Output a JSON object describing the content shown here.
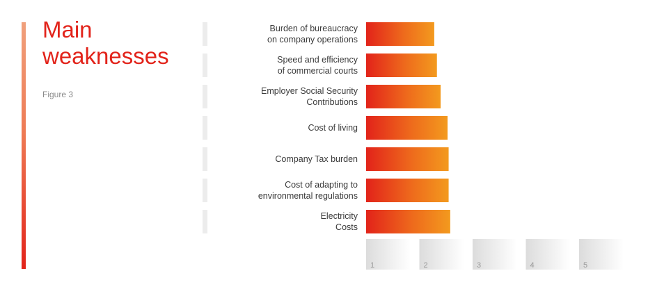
{
  "header": {
    "title_line1": "Main",
    "title_line2": "weaknesses",
    "figure_label": "Figure 3"
  },
  "colors": {
    "accent": "#e2231a",
    "bar_start": "#e2231a",
    "bar_end": "#f39a1e"
  },
  "chart_data": {
    "type": "bar",
    "orientation": "horizontal",
    "categories": [
      [
        "Burden of bureaucracy",
        "on company operations"
      ],
      [
        "Speed and efficiency",
        "of commercial courts"
      ],
      [
        "Employer Social Security",
        "Contributions"
      ],
      [
        "Cost of living"
      ],
      [
        "Company Tax burden"
      ],
      [
        "Cost of adapting to",
        "environmental regulations"
      ],
      [
        "Electricity",
        "Costs"
      ]
    ],
    "values": [
      2.28,
      2.33,
      2.4,
      2.53,
      2.55,
      2.55,
      2.58
    ],
    "xlim": [
      1,
      5
    ],
    "x_ticks": [
      1,
      2,
      3,
      4,
      5
    ],
    "grid": false,
    "legend": "none"
  }
}
